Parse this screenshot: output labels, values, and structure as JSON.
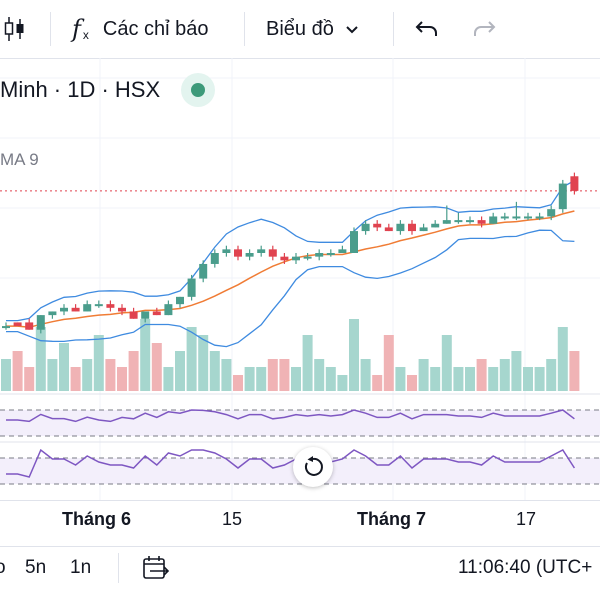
{
  "toolbar": {
    "indicators_label": "Các chỉ báo",
    "chart_type_label": "Biểu đồ"
  },
  "legend": {
    "symbol_text": "Minh · 1D · HSX"
  },
  "indicator": {
    "ma_label": "MA 9"
  },
  "time_axis": {
    "ticks": [
      "Tháng 6",
      "15",
      "Tháng 7",
      "17"
    ]
  },
  "bottom_bar": {
    "interval_5d": "5n",
    "interval_1d": "1n",
    "clock": "11:06:40 (UTC+"
  },
  "colors": {
    "up": "#4a9d8c",
    "down": "#e0434f",
    "up_volume": "#a6d6ce",
    "down_volume": "#f0b3b5",
    "bollinger": "#3f8be0",
    "ma": "#f07c35",
    "oscillator": "#7e57c2",
    "band_fill": "#f3effb",
    "price_line": "#e0434f"
  },
  "chart_data": {
    "type": "candlestick",
    "series": [
      {
        "name": "",
        "ohlc": [
          [
            50,
            50,
            51,
            49
          ],
          [
            51,
            50,
            51,
            50
          ],
          [
            51,
            49,
            52,
            49
          ],
          [
            49,
            53,
            53,
            48
          ],
          [
            53,
            54,
            54,
            52
          ],
          [
            54,
            55,
            56,
            53
          ],
          [
            55,
            54,
            56,
            54
          ],
          [
            54,
            56,
            57,
            54
          ],
          [
            56,
            56,
            57,
            55
          ],
          [
            56,
            55,
            57,
            54
          ],
          [
            55,
            54,
            56,
            53
          ],
          [
            54,
            52,
            55,
            52
          ],
          [
            52,
            54,
            54,
            51
          ],
          [
            54,
            53,
            55,
            53
          ],
          [
            53,
            56,
            57,
            53
          ],
          [
            56,
            58,
            58,
            55
          ],
          [
            58,
            63,
            64,
            57
          ],
          [
            63,
            67,
            68,
            62
          ],
          [
            67,
            70,
            71,
            66
          ],
          [
            70,
            71,
            72,
            69
          ],
          [
            71,
            69,
            72,
            68
          ],
          [
            69,
            70,
            71,
            68
          ],
          [
            70,
            71,
            72,
            69
          ],
          [
            71,
            69,
            72,
            68
          ],
          [
            69,
            68,
            70,
            67
          ],
          [
            68,
            69,
            70,
            67
          ],
          [
            69,
            69,
            70,
            68
          ],
          [
            69,
            70,
            71,
            68
          ],
          [
            70,
            70,
            71,
            69
          ],
          [
            70,
            71,
            72,
            70
          ],
          [
            70,
            76,
            77,
            70
          ],
          [
            76,
            78,
            79,
            75
          ],
          [
            78,
            77,
            79,
            76
          ],
          [
            77,
            76,
            78,
            76
          ],
          [
            76,
            78,
            79,
            75
          ],
          [
            78,
            76,
            79,
            75
          ],
          [
            76,
            77,
            78,
            76
          ],
          [
            77,
            78,
            79,
            77
          ],
          [
            78,
            79,
            83,
            78
          ],
          [
            79,
            79,
            81,
            78
          ],
          [
            79,
            79,
            80,
            78
          ],
          [
            79,
            78,
            80,
            77
          ],
          [
            78,
            80,
            81,
            78
          ],
          [
            80,
            80,
            81,
            79
          ],
          [
            80,
            80,
            84,
            79
          ],
          [
            80,
            80,
            81,
            79
          ],
          [
            80,
            80,
            81,
            79
          ],
          [
            80,
            82,
            83,
            79
          ],
          [
            82,
            89,
            90,
            81
          ],
          [
            91,
            87,
            92,
            86
          ]
        ]
      }
    ],
    "volume": [
      4,
      5,
      3,
      8,
      4,
      6,
      3,
      4,
      7,
      4,
      3,
      5,
      9,
      6,
      3,
      5,
      8,
      7,
      5,
      4,
      2,
      3,
      3,
      4,
      4,
      3,
      7,
      4,
      3,
      2,
      9,
      4,
      2,
      7,
      3,
      2,
      4,
      3,
      7,
      3,
      3,
      4,
      3,
      4,
      5,
      3,
      3,
      4,
      8,
      5
    ]
  }
}
